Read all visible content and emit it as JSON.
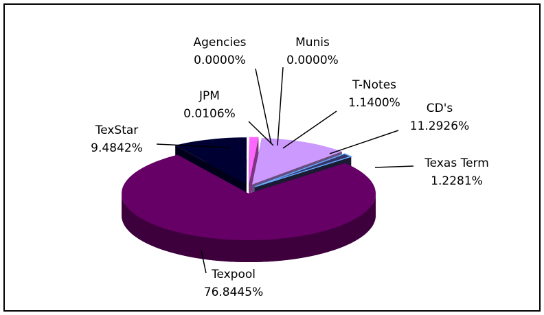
{
  "chart_data": {
    "type": "pie",
    "categories": [
      "Texpool",
      "TexStar",
      "JPM",
      "Agencies",
      "Munis",
      "T-Notes",
      "CD's",
      "Texas Term"
    ],
    "values": [
      76.8445,
      9.4842,
      0.0106,
      0,
      0,
      1.14,
      11.2926,
      1.2281
    ],
    "value_labels": [
      "76.8445%",
      "9.4842%",
      "0.0106%",
      "0.0000%",
      "0.0000%",
      "1.1400%",
      "11.2926%",
      "1.2281%"
    ],
    "colors": [
      "#660066",
      "#000033",
      "#6699ff",
      "#9999ff",
      "#ff66ff",
      "#ff66ff",
      "#cc99ff",
      "#333366"
    ]
  }
}
